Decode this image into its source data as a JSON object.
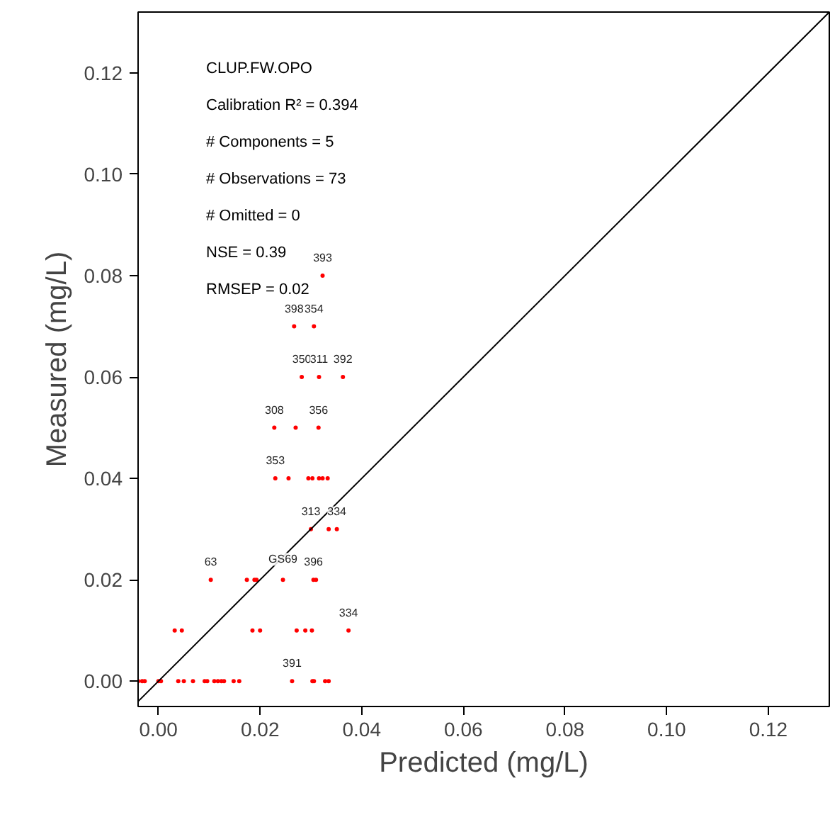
{
  "chart_data": {
    "type": "scatter",
    "xlabel": "Predicted (mg/L)",
    "ylabel": "Measured (mg/L)",
    "xlim": [
      -0.004,
      0.132
    ],
    "ylim": [
      -0.005,
      0.132
    ],
    "xticks": [
      {
        "value": 0,
        "label": "0.00"
      },
      {
        "value": 0.02,
        "label": "0.02"
      },
      {
        "value": 0.04,
        "label": "0.04"
      },
      {
        "value": 0.06,
        "label": "0.06"
      },
      {
        "value": 0.08,
        "label": "0.08"
      },
      {
        "value": 0.1,
        "label": "0.10"
      },
      {
        "value": 0.12,
        "label": "0.12"
      }
    ],
    "yticks": [
      {
        "value": 0,
        "label": "0.00"
      },
      {
        "value": 0.02,
        "label": "0.02"
      },
      {
        "value": 0.04,
        "label": "0.04"
      },
      {
        "value": 0.06,
        "label": "0.06"
      },
      {
        "value": 0.08,
        "label": "0.08"
      },
      {
        "value": 0.1,
        "label": "0.10"
      },
      {
        "value": 0.12,
        "label": "0.12"
      }
    ],
    "grid": false,
    "marker": "circle",
    "series": [
      {
        "color": "#ff0000",
        "x": [
          0.0323,
          0.0267,
          0.0306,
          0.0282,
          0.0316,
          0.0363,
          0.0228,
          0.027,
          0.0315,
          0.023,
          0.0256,
          0.0295,
          0.0303,
          0.0316,
          0.0323,
          0.0333,
          0.03,
          0.0335,
          0.0351,
          0.0103,
          0.0174,
          0.0189,
          0.0193,
          0.0245,
          0.0305,
          0.031,
          0.0032,
          0.0046,
          0.0185,
          0.02,
          0.0272,
          0.0289,
          0.0302,
          0.0374,
          -0.004,
          -0.0032,
          -0.0027,
          0.0,
          0.0005,
          0.0039,
          0.005,
          0.0068,
          0.0091,
          0.0096,
          0.011,
          0.0117,
          0.0124,
          0.0129,
          0.0148,
          0.0159,
          0.0263,
          0.0303,
          0.0306,
          0.0328,
          0.0335
        ],
        "values": [
          0.08,
          0.07,
          0.07,
          0.06,
          0.06,
          0.06,
          0.05,
          0.05,
          0.05,
          0.04,
          0.04,
          0.04,
          0.04,
          0.04,
          0.04,
          0.04,
          0.03,
          0.03,
          0.03,
          0.02,
          0.02,
          0.02,
          0.02,
          0.02,
          0.02,
          0.02,
          0.01,
          0.01,
          0.01,
          0.01,
          0.01,
          0.01,
          0.01,
          0.01,
          0,
          0,
          0,
          0,
          0,
          0,
          0,
          0,
          0,
          0,
          0,
          0,
          0,
          0,
          0,
          0,
          0,
          0,
          0,
          0,
          0
        ]
      },
      {
        "type": "line",
        "color": "#000000",
        "marker": "none",
        "x": [
          -0.004,
          0.132
        ],
        "values": [
          -0.004,
          0.132
        ]
      }
    ],
    "annotations": [
      "CLUP.FW.OPO",
      "Calibration R² = 0.394",
      "# Components = 5",
      "# Observations =  73",
      "# Omitted =  0",
      "NSE =  0.39",
      "RMSEP =  0.02",
      {
        "text": "393",
        "x": 0.0323,
        "y": 0.08
      },
      {
        "text": "398",
        "x": 0.0267,
        "y": 0.07
      },
      {
        "text": "354",
        "x": 0.0306,
        "y": 0.07
      },
      {
        "text": "350",
        "x": 0.0282,
        "y": 0.06
      },
      {
        "text": "311",
        "x": 0.0316,
        "y": 0.06
      },
      {
        "text": "392",
        "x": 0.0363,
        "y": 0.06
      },
      {
        "text": "308",
        "x": 0.0228,
        "y": 0.05
      },
      {
        "text": "356",
        "x": 0.0315,
        "y": 0.05
      },
      {
        "text": "353",
        "x": 0.023,
        "y": 0.04
      },
      {
        "text": "313",
        "x": 0.03,
        "y": 0.03
      },
      {
        "text": "334",
        "x": 0.0351,
        "y": 0.03
      },
      {
        "text": "63",
        "x": 0.0103,
        "y": 0.02
      },
      {
        "text": "GS69",
        "x": 0.0245,
        "y": 0.02
      },
      {
        "text": "396",
        "x": 0.0305,
        "y": 0.02
      },
      {
        "text": "334",
        "x": 0.0374,
        "y": 0.01
      },
      {
        "text": "391",
        "x": 0.0263,
        "y": 0
      }
    ]
  }
}
